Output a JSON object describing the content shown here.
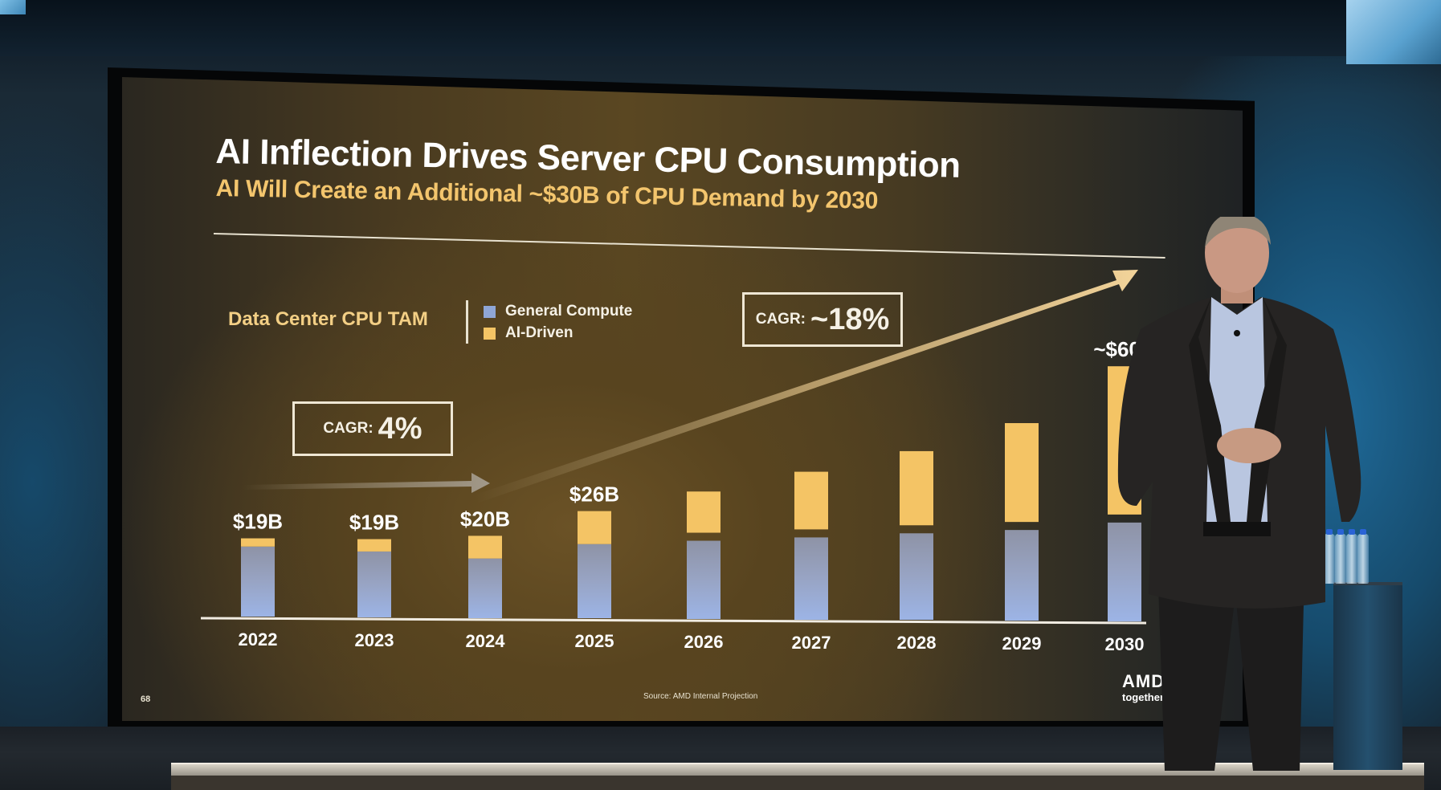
{
  "slide": {
    "title": "AI Inflection Drives Server CPU Consumption",
    "subtitle": "AI Will Create an Additional ~$30B of CPU Demand by 2030",
    "tam_label": "Data Center CPU TAM",
    "legend": [
      {
        "label": "General Compute",
        "color": "#8fa6d6"
      },
      {
        "label": "AI-Driven",
        "color": "#f4c465"
      }
    ],
    "cagr_left": {
      "label": "CAGR:",
      "value": "4%"
    },
    "cagr_right": {
      "label": "CAGR:",
      "value": "~18%"
    },
    "source": "Source: AMD Internal Projection",
    "page_number": "68",
    "logo": "AMD",
    "logo_tagline": "together"
  },
  "chart_data": {
    "type": "bar",
    "stacked": true,
    "title": "AI Inflection Drives Server CPU Consumption",
    "subtitle": "AI Will Create an Additional ~$30B of CPU Demand by 2030",
    "xlabel": "",
    "ylabel": "Data Center CPU TAM",
    "categories": [
      "2022",
      "2023",
      "2024",
      "2025",
      "2026",
      "2027",
      "2028",
      "2029",
      "2030"
    ],
    "series": [
      {
        "name": "General Compute",
        "color": "#8fa6d6",
        "values": [
          17,
          16,
          14.5,
          18,
          19,
          20,
          21,
          22,
          24
        ]
      },
      {
        "name": "AI-Driven",
        "color": "#f4c465",
        "values": [
          2,
          3,
          5.5,
          8,
          10,
          14,
          18,
          24,
          36
        ]
      }
    ],
    "total_labels": [
      "$19B",
      "$19B",
      "$20B",
      "$26B",
      "",
      "",
      "",
      "",
      "~$60B"
    ],
    "annotations": [
      {
        "text": "CAGR: 4%",
        "span": [
          "2022",
          "2024"
        ]
      },
      {
        "text": "CAGR: ~18%",
        "span": [
          "2024",
          "2030"
        ]
      }
    ],
    "ylim": [
      0,
      60
    ],
    "grid": false,
    "legend_position": "top-left"
  }
}
